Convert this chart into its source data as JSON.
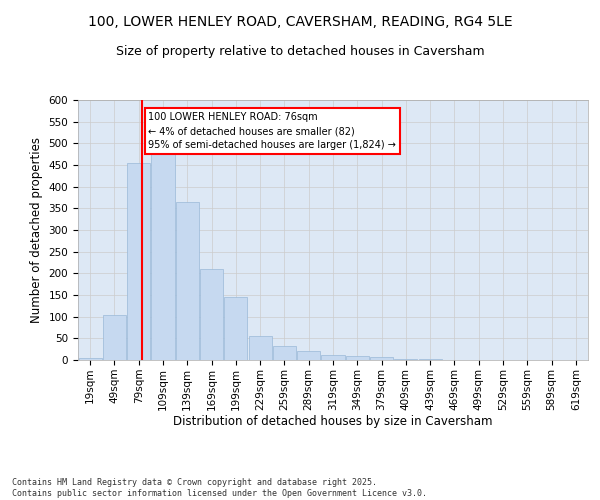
{
  "title_line1": "100, LOWER HENLEY ROAD, CAVERSHAM, READING, RG4 5LE",
  "title_line2": "Size of property relative to detached houses in Caversham",
  "xlabel": "Distribution of detached houses by size in Caversham",
  "ylabel": "Number of detached properties",
  "bar_color": "#c6d9f0",
  "bar_edge_color": "#9ab8d8",
  "bar_heights": [
    5,
    105,
    455,
    495,
    365,
    210,
    145,
    55,
    32,
    20,
    12,
    10,
    8,
    3,
    3,
    0,
    0,
    0,
    0,
    0,
    0
  ],
  "categories": [
    "19sqm",
    "49sqm",
    "79sqm",
    "109sqm",
    "139sqm",
    "169sqm",
    "199sqm",
    "229sqm",
    "259sqm",
    "289sqm",
    "319sqm",
    "349sqm",
    "379sqm",
    "409sqm",
    "439sqm",
    "469sqm",
    "499sqm",
    "529sqm",
    "559sqm",
    "589sqm",
    "619sqm"
  ],
  "ylim": [
    0,
    600
  ],
  "yticks": [
    0,
    50,
    100,
    150,
    200,
    250,
    300,
    350,
    400,
    450,
    500,
    550,
    600
  ],
  "vline_x_idx": 2.15,
  "annotation_text": "100 LOWER HENLEY ROAD: 76sqm\n← 4% of detached houses are smaller (82)\n95% of semi-detached houses are larger (1,824) →",
  "annotation_box_color": "white",
  "annotation_box_edge_color": "red",
  "grid_color": "#cccccc",
  "background_color": "#dde8f5",
  "footer_text": "Contains HM Land Registry data © Crown copyright and database right 2025.\nContains public sector information licensed under the Open Government Licence v3.0.",
  "vline_color": "red",
  "title_fontsize": 10,
  "subtitle_fontsize": 9,
  "tick_fontsize": 7.5,
  "label_fontsize": 8.5,
  "footer_fontsize": 6
}
